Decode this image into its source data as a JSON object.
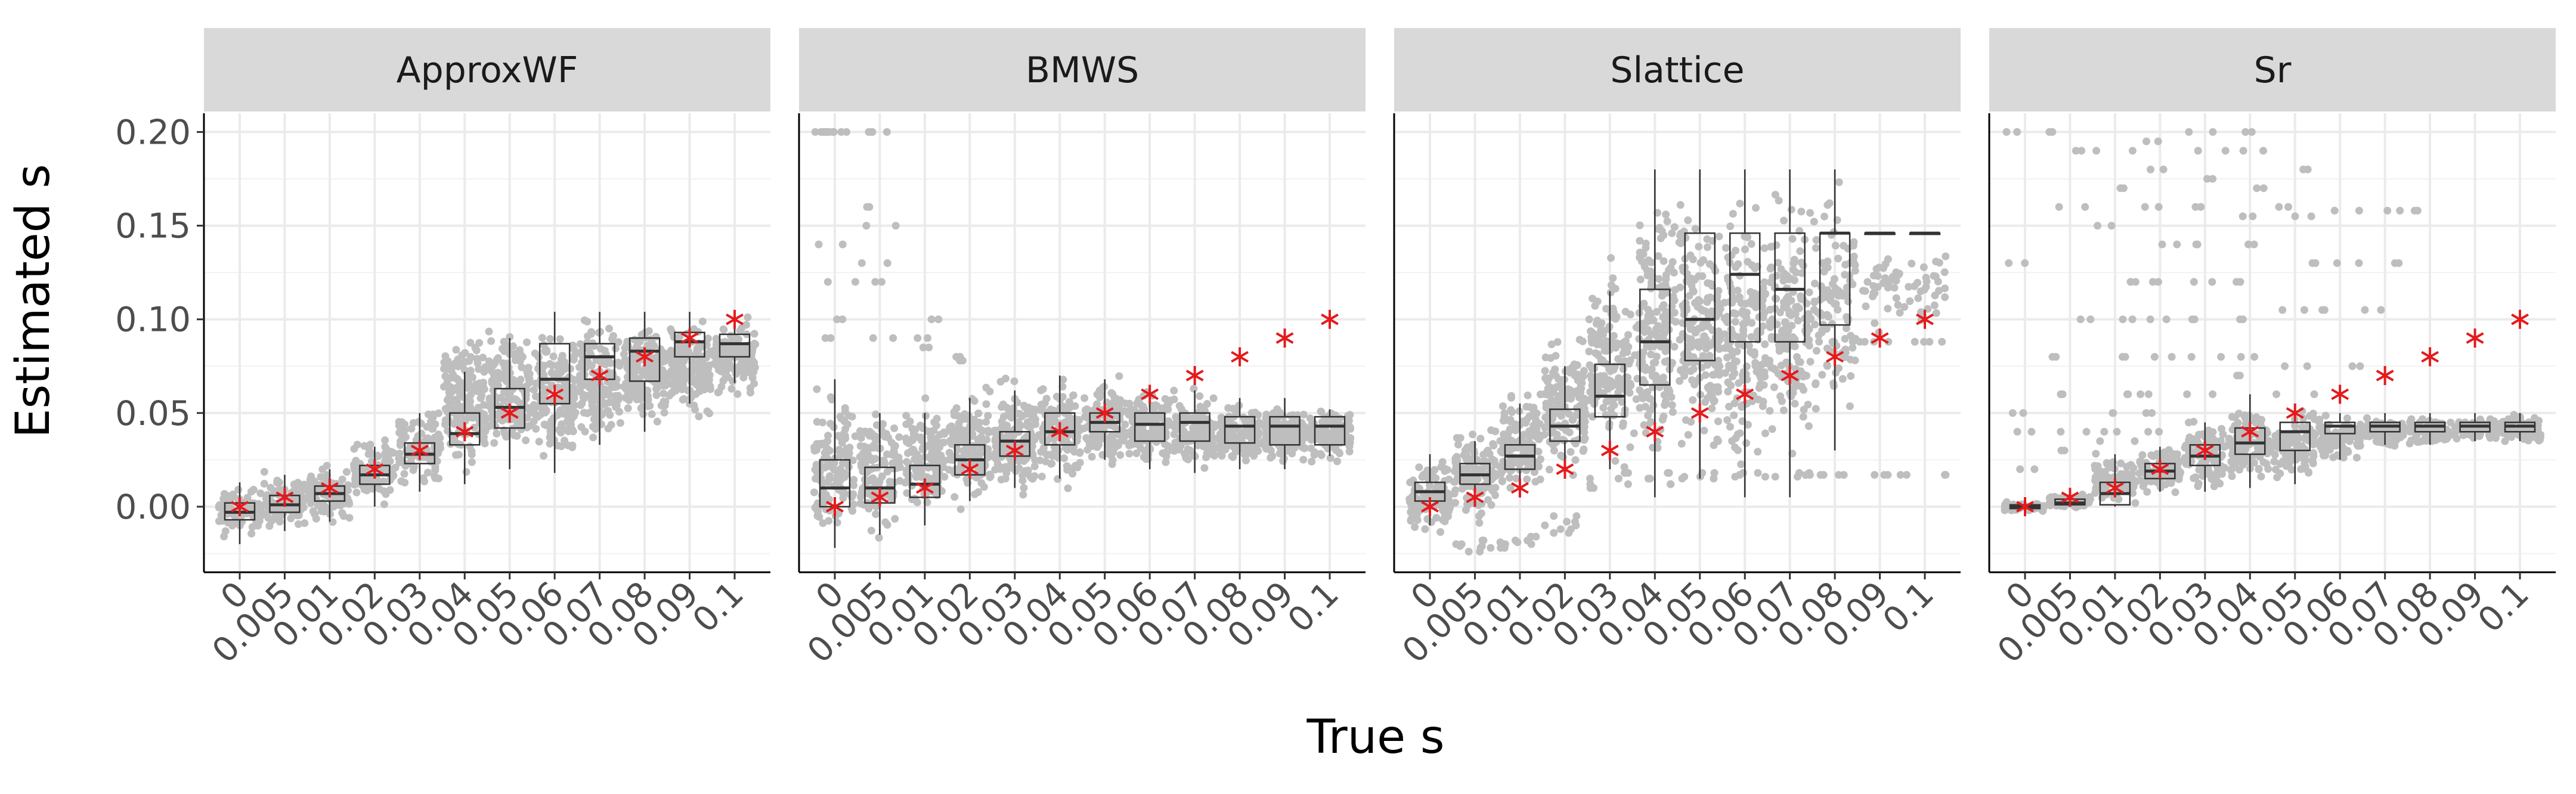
{
  "chart_data": {
    "type": "boxplot",
    "xlabel": "True s",
    "ylabel": "Estimated s",
    "categories": [
      "0",
      "0.005",
      "0.01",
      "0.02",
      "0.03",
      "0.04",
      "0.05",
      "0.06",
      "0.07",
      "0.08",
      "0.09",
      "0.1"
    ],
    "true_values": [
      0,
      0.005,
      0.01,
      0.02,
      0.03,
      0.04,
      0.05,
      0.06,
      0.07,
      0.08,
      0.09,
      0.1
    ],
    "ylim": [
      -0.035,
      0.21
    ],
    "yticks": [
      0.0,
      0.05,
      0.1,
      0.15,
      0.2
    ],
    "ytick_labels": [
      "0.00",
      "0.05",
      "0.10",
      "0.15",
      "0.20"
    ],
    "grid": true,
    "point_color": "#bebebe",
    "box_color": "#333333",
    "truth_marker_color": "#e41a1c",
    "strip_color": "#d9d9d9",
    "panels": [
      {
        "name": "ApproxWF",
        "boxes": [
          {
            "q1": -0.007,
            "median": -0.003,
            "q3": 0.002,
            "whisker_low": -0.02,
            "whisker_high": 0.013
          },
          {
            "q1": -0.003,
            "median": 0.001,
            "q3": 0.006,
            "whisker_low": -0.013,
            "whisker_high": 0.017
          },
          {
            "q1": 0.003,
            "median": 0.007,
            "q3": 0.011,
            "whisker_low": -0.008,
            "whisker_high": 0.02
          },
          {
            "q1": 0.012,
            "median": 0.017,
            "q3": 0.022,
            "whisker_low": 0.0,
            "whisker_high": 0.032
          },
          {
            "q1": 0.023,
            "median": 0.028,
            "q3": 0.034,
            "whisker_low": 0.008,
            "whisker_high": 0.05
          },
          {
            "q1": 0.033,
            "median": 0.039,
            "q3": 0.05,
            "whisker_low": 0.012,
            "whisker_high": 0.072
          },
          {
            "q1": 0.042,
            "median": 0.053,
            "q3": 0.063,
            "whisker_low": 0.02,
            "whisker_high": 0.09
          },
          {
            "q1": 0.055,
            "median": 0.068,
            "q3": 0.087,
            "whisker_low": 0.018,
            "whisker_high": 0.104
          },
          {
            "q1": 0.068,
            "median": 0.08,
            "q3": 0.087,
            "whisker_low": 0.033,
            "whisker_high": 0.104
          },
          {
            "q1": 0.067,
            "median": 0.083,
            "q3": 0.09,
            "whisker_low": 0.04,
            "whisker_high": 0.104
          },
          {
            "q1": 0.08,
            "median": 0.088,
            "q3": 0.093,
            "whisker_low": 0.055,
            "whisker_high": 0.104
          },
          {
            "q1": 0.08,
            "median": 0.087,
            "q3": 0.092,
            "whisker_low": 0.066,
            "whisker_high": 0.102
          }
        ],
        "point_clouds": [
          {
            "low": -0.02,
            "high": 0.015,
            "n": 90
          },
          {
            "low": -0.015,
            "high": 0.02,
            "n": 90
          },
          {
            "low": -0.01,
            "high": 0.024,
            "n": 90
          },
          {
            "low": -0.002,
            "high": 0.04,
            "n": 90
          },
          {
            "low": 0.005,
            "high": 0.058,
            "n": 110
          },
          {
            "low": 0.01,
            "high": 0.1,
            "n": 160
          },
          {
            "low": 0.02,
            "high": 0.1,
            "n": 160
          },
          {
            "low": 0.015,
            "high": 0.104,
            "n": 160
          },
          {
            "low": 0.03,
            "high": 0.106,
            "n": 160
          },
          {
            "low": 0.035,
            "high": 0.106,
            "n": 160
          },
          {
            "low": 0.045,
            "high": 0.105,
            "n": 150
          },
          {
            "low": 0.055,
            "high": 0.103,
            "n": 140
          }
        ],
        "outliers": []
      },
      {
        "name": "BMWS",
        "boxes": [
          {
            "q1": 0.0,
            "median": 0.01,
            "q3": 0.025,
            "whisker_low": -0.022,
            "whisker_high": 0.068
          },
          {
            "q1": 0.002,
            "median": 0.01,
            "q3": 0.021,
            "whisker_low": -0.015,
            "whisker_high": 0.05
          },
          {
            "q1": 0.005,
            "median": 0.012,
            "q3": 0.022,
            "whisker_low": -0.01,
            "whisker_high": 0.05
          },
          {
            "q1": 0.017,
            "median": 0.025,
            "q3": 0.033,
            "whisker_low": 0.003,
            "whisker_high": 0.058
          },
          {
            "q1": 0.027,
            "median": 0.035,
            "q3": 0.04,
            "whisker_low": 0.01,
            "whisker_high": 0.062
          },
          {
            "q1": 0.033,
            "median": 0.04,
            "q3": 0.05,
            "whisker_low": 0.015,
            "whisker_high": 0.07
          },
          {
            "q1": 0.04,
            "median": 0.045,
            "q3": 0.05,
            "whisker_low": 0.025,
            "whisker_high": 0.068
          },
          {
            "q1": 0.035,
            "median": 0.044,
            "q3": 0.05,
            "whisker_low": 0.02,
            "whisker_high": 0.065
          },
          {
            "q1": 0.035,
            "median": 0.045,
            "q3": 0.05,
            "whisker_low": 0.018,
            "whisker_high": 0.062
          },
          {
            "q1": 0.034,
            "median": 0.043,
            "q3": 0.048,
            "whisker_low": 0.02,
            "whisker_high": 0.058
          },
          {
            "q1": 0.033,
            "median": 0.043,
            "q3": 0.048,
            "whisker_low": 0.02,
            "whisker_high": 0.058
          },
          {
            "q1": 0.033,
            "median": 0.043,
            "q3": 0.048,
            "whisker_low": 0.027,
            "whisker_high": 0.052
          }
        ],
        "point_clouds": [
          {
            "low": -0.025,
            "high": 0.07,
            "n": 130
          },
          {
            "low": -0.02,
            "high": 0.06,
            "n": 130
          },
          {
            "low": -0.015,
            "high": 0.06,
            "n": 130
          },
          {
            "low": -0.005,
            "high": 0.07,
            "n": 130
          },
          {
            "low": 0.0,
            "high": 0.075,
            "n": 140
          },
          {
            "low": 0.005,
            "high": 0.075,
            "n": 140
          },
          {
            "low": 0.015,
            "high": 0.075,
            "n": 140
          },
          {
            "low": 0.015,
            "high": 0.07,
            "n": 130
          },
          {
            "low": 0.015,
            "high": 0.065,
            "n": 130
          },
          {
            "low": 0.018,
            "high": 0.06,
            "n": 120
          },
          {
            "low": 0.018,
            "high": 0.058,
            "n": 120
          },
          {
            "low": 0.022,
            "high": 0.055,
            "n": 110
          }
        ],
        "outliers": [
          {
            "i": 0,
            "y": [
              0.2,
              0.2,
              0.2,
              0.2,
              0.2,
              0.2,
              0.14,
              0.12,
              0.1,
              0.09
            ]
          },
          {
            "i": 1,
            "y": [
              0.2,
              0.2,
              0.16,
              0.15,
              0.13,
              0.12,
              0.09
            ]
          },
          {
            "i": 2,
            "y": [
              0.1,
              0.09,
              0.085
            ]
          },
          {
            "i": 3,
            "y": [
              0.08,
              0.078
            ]
          }
        ]
      },
      {
        "name": "Slattice",
        "boxes": [
          {
            "q1": 0.003,
            "median": 0.008,
            "q3": 0.013,
            "whisker_low": -0.01,
            "whisker_high": 0.028
          },
          {
            "q1": 0.012,
            "median": 0.017,
            "q3": 0.023,
            "whisker_low": 0.0,
            "whisker_high": 0.035
          },
          {
            "q1": 0.02,
            "median": 0.027,
            "q3": 0.033,
            "whisker_low": 0.005,
            "whisker_high": 0.055
          },
          {
            "q1": 0.035,
            "median": 0.043,
            "q3": 0.052,
            "whisker_low": 0.015,
            "whisker_high": 0.075
          },
          {
            "q1": 0.048,
            "median": 0.059,
            "q3": 0.076,
            "whisker_low": 0.02,
            "whisker_high": 0.115
          },
          {
            "q1": 0.065,
            "median": 0.088,
            "q3": 0.116,
            "whisker_low": 0.005,
            "whisker_high": 0.18
          },
          {
            "q1": 0.078,
            "median": 0.1,
            "q3": 0.146,
            "whisker_low": 0.015,
            "whisker_high": 0.18
          },
          {
            "q1": 0.088,
            "median": 0.124,
            "q3": 0.146,
            "whisker_low": 0.005,
            "whisker_high": 0.18
          },
          {
            "q1": 0.088,
            "median": 0.116,
            "q3": 0.146,
            "whisker_low": 0.005,
            "whisker_high": 0.18
          },
          {
            "q1": 0.097,
            "median": 0.146,
            "q3": 0.146,
            "whisker_low": 0.03,
            "whisker_high": 0.18
          },
          {
            "q1": 0.146,
            "median": 0.146,
            "q3": 0.146,
            "whisker_low": 0.146,
            "whisker_high": 0.146
          },
          {
            "q1": 0.146,
            "median": 0.146,
            "q3": 0.146,
            "whisker_low": 0.146,
            "whisker_high": 0.146
          }
        ],
        "point_clouds": [
          {
            "low": -0.02,
            "high": 0.03,
            "n": 110
          },
          {
            "low": -0.01,
            "high": 0.045,
            "n": 120
          },
          {
            "low": 0.0,
            "high": 0.07,
            "n": 130
          },
          {
            "low": 0.01,
            "high": 0.1,
            "n": 150
          },
          {
            "low": 0.015,
            "high": 0.14,
            "n": 170
          },
          {
            "low": 0.01,
            "high": 0.18,
            "n": 180
          },
          {
            "low": 0.015,
            "high": 0.18,
            "n": 180
          },
          {
            "low": 0.01,
            "high": 0.18,
            "n": 170
          },
          {
            "low": 0.01,
            "high": 0.18,
            "n": 160
          },
          {
            "low": 0.03,
            "high": 0.18,
            "n": 110
          },
          {
            "low": 0.088,
            "high": 0.146,
            "n": 30
          },
          {
            "low": 0.088,
            "high": 0.146,
            "n": 30
          }
        ],
        "outliers": [
          {
            "i": 1,
            "y": [
              -0.02,
              -0.022,
              -0.018,
              -0.024,
              -0.021
            ]
          },
          {
            "i": 2,
            "y": [
              -0.018,
              -0.02,
              -0.022,
              -0.016,
              -0.019
            ]
          },
          {
            "i": 3,
            "y": [
              -0.005,
              -0.01,
              -0.012,
              -0.008,
              -0.014
            ]
          },
          {
            "i": 4,
            "y": [
              0.012,
              0.015,
              0.018,
              0.01
            ]
          },
          {
            "i": 5,
            "y": [
              0.012,
              0.015,
              0.018
            ]
          },
          {
            "i": 6,
            "y": [
              0.016,
              0.018,
              0.015
            ]
          },
          {
            "i": 7,
            "y": [
              0.016,
              0.018,
              0.017
            ]
          },
          {
            "i": 8,
            "y": [
              0.016,
              0.018,
              0.017
            ]
          },
          {
            "i": 9,
            "y": [
              0.017,
              0.017,
              0.088,
              0.088
            ]
          },
          {
            "i": 10,
            "y": [
              0.017,
              0.017,
              0.088,
              0.088,
              0.12
            ]
          },
          {
            "i": 11,
            "y": [
              0.017,
              0.017,
              0.088,
              0.088
            ]
          }
        ]
      },
      {
        "name": "Sr",
        "boxes": [
          {
            "q1": -0.001,
            "median": 0.0,
            "q3": 0.001,
            "whisker_low": -0.002,
            "whisker_high": 0.002
          },
          {
            "q1": 0.001,
            "median": 0.002,
            "q3": 0.004,
            "whisker_low": 0.0,
            "whisker_high": 0.006
          },
          {
            "q1": 0.001,
            "median": 0.007,
            "q3": 0.013,
            "whisker_low": 0.0,
            "whisker_high": 0.028
          },
          {
            "q1": 0.015,
            "median": 0.019,
            "q3": 0.023,
            "whisker_low": 0.008,
            "whisker_high": 0.032
          },
          {
            "q1": 0.022,
            "median": 0.027,
            "q3": 0.033,
            "whisker_low": 0.008,
            "whisker_high": 0.045
          },
          {
            "q1": 0.028,
            "median": 0.034,
            "q3": 0.042,
            "whisker_low": 0.01,
            "whisker_high": 0.06
          },
          {
            "q1": 0.03,
            "median": 0.04,
            "q3": 0.045,
            "whisker_low": 0.012,
            "whisker_high": 0.052
          },
          {
            "q1": 0.039,
            "median": 0.043,
            "q3": 0.045,
            "whisker_low": 0.025,
            "whisker_high": 0.05
          },
          {
            "q1": 0.04,
            "median": 0.043,
            "q3": 0.045,
            "whisker_low": 0.033,
            "whisker_high": 0.05
          },
          {
            "q1": 0.04,
            "median": 0.043,
            "q3": 0.045,
            "whisker_low": 0.033,
            "whisker_high": 0.05
          },
          {
            "q1": 0.04,
            "median": 0.043,
            "q3": 0.045,
            "whisker_low": 0.035,
            "whisker_high": 0.05
          },
          {
            "q1": 0.04,
            "median": 0.043,
            "q3": 0.045,
            "whisker_low": 0.035,
            "whisker_high": 0.05
          }
        ],
        "point_clouds": [
          {
            "low": -0.003,
            "high": 0.003,
            "n": 50
          },
          {
            "low": -0.002,
            "high": 0.008,
            "n": 60
          },
          {
            "low": -0.002,
            "high": 0.03,
            "n": 80
          },
          {
            "low": 0.005,
            "high": 0.035,
            "n": 100
          },
          {
            "low": 0.005,
            "high": 0.05,
            "n": 110
          },
          {
            "low": 0.01,
            "high": 0.06,
            "n": 120
          },
          {
            "low": 0.01,
            "high": 0.055,
            "n": 100
          },
          {
            "low": 0.02,
            "high": 0.052,
            "n": 90
          },
          {
            "low": 0.03,
            "high": 0.05,
            "n": 80
          },
          {
            "low": 0.03,
            "high": 0.05,
            "n": 80
          },
          {
            "low": 0.033,
            "high": 0.05,
            "n": 80
          },
          {
            "low": 0.033,
            "high": 0.05,
            "n": 80
          }
        ],
        "outliers": [
          {
            "i": 0,
            "y": [
              0.2,
              0.13,
              0.05,
              0.04,
              0.02
            ]
          },
          {
            "i": 1,
            "y": [
              0.2,
              0.19,
              0.16,
              0.1,
              0.08,
              0.06,
              0.04,
              0.03
            ]
          },
          {
            "i": 2,
            "y": [
              0.19,
              0.17,
              0.15,
              0.12,
              0.1,
              0.08,
              0.06,
              0.05,
              0.04,
              0.035
            ]
          },
          {
            "i": 3,
            "y": [
              0.195,
              0.18,
              0.16,
              0.14,
              0.12,
              0.1,
              0.08,
              0.06,
              0.05,
              0.04
            ]
          },
          {
            "i": 4,
            "y": [
              0.2,
              0.19,
              0.175,
              0.16,
              0.14,
              0.12,
              0.1,
              0.08,
              0.06
            ]
          },
          {
            "i": 5,
            "y": [
              0.2,
              0.19,
              0.17,
              0.155,
              0.14,
              0.12,
              0.1,
              0.08,
              0.07
            ]
          },
          {
            "i": 6,
            "y": [
              0.18,
              0.16,
              0.155,
              0.13,
              0.105,
              0.075,
              0.06
            ]
          },
          {
            "i": 7,
            "y": [
              0.158,
              0.13,
              0.105,
              0.075
            ]
          },
          {
            "i": 8,
            "y": [
              0.158,
              0.13,
              0.105
            ]
          },
          {
            "i": 9,
            "y": [
              0.158
            ]
          }
        ]
      }
    ]
  }
}
